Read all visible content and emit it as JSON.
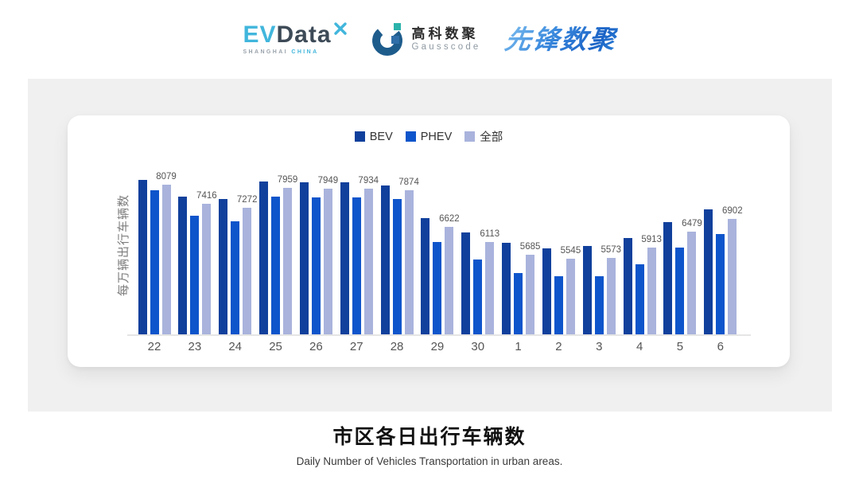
{
  "header": {
    "evdata": {
      "ev": "EV",
      "data": "Data",
      "sub_left": "SHANGHAI",
      "sub_right": "CHINA"
    },
    "gausscode": {
      "cn": "高科数聚",
      "en": "Gausscode"
    },
    "xianfeng": "先锋数聚"
  },
  "chart_data": {
    "type": "bar",
    "title": "市区各日出行车辆数",
    "categories": [
      "22",
      "23",
      "24",
      "25",
      "26",
      "27",
      "28",
      "29",
      "30",
      "1",
      "2",
      "3",
      "4",
      "5",
      "6"
    ],
    "series": [
      {
        "name": "BEV",
        "color": "#10409c",
        "values": [
          8240,
          7670,
          7590,
          8180,
          8160,
          8160,
          8040,
          6930,
          6450,
          6090,
          5900,
          5970,
          6240,
          6790,
          7220
        ],
        "show_labels": false
      },
      {
        "name": "PHEV",
        "color": "#0e55cb",
        "values": [
          7890,
          7010,
          6820,
          7660,
          7650,
          7630,
          7590,
          6100,
          5520,
          5060,
          4930,
          4930,
          5340,
          5930,
          6380
        ],
        "show_labels": false
      },
      {
        "name": "全部",
        "color": "#a9b3dc",
        "values": [
          8079,
          7416,
          7272,
          7959,
          7949,
          7934,
          7874,
          6622,
          6113,
          5685,
          5545,
          5573,
          5913,
          6479,
          6902
        ],
        "show_labels": true
      }
    ],
    "xlabel": "",
    "ylabel": "每万辆出行车辆数",
    "ylim": [
      2950,
      8400
    ],
    "grid": false,
    "legend_position": "top",
    "y_tick_labels_visible": false
  },
  "footer": {
    "title": "市区各日出行车辆数",
    "subtitle": "Daily Number of Vehicles Transportation in urban areas."
  }
}
